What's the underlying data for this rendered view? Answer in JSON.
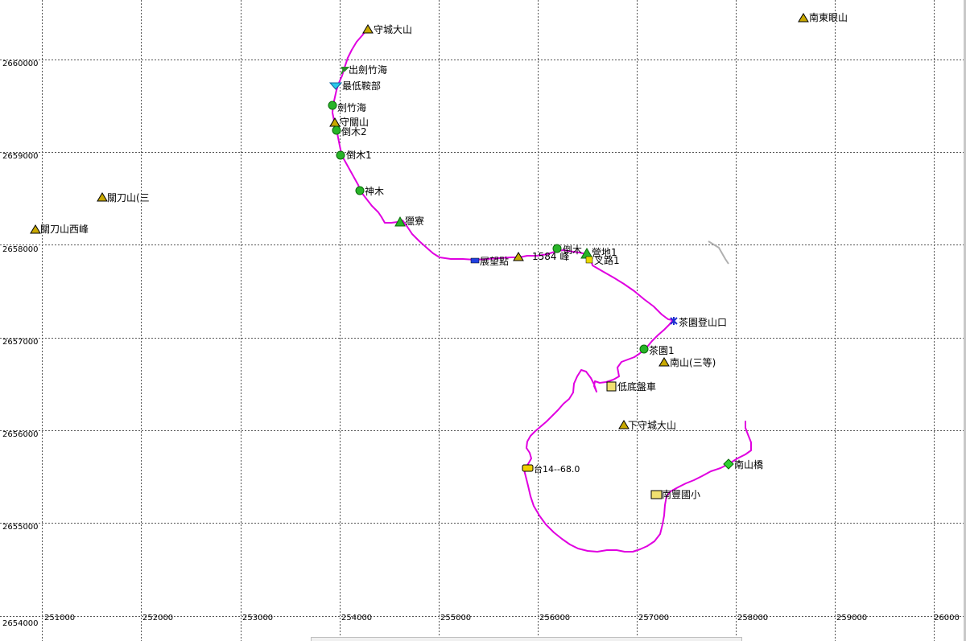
{
  "map": {
    "x_axis_labels": [
      "251000",
      "252000",
      "253000",
      "254000",
      "255000",
      "256000",
      "257000",
      "258000",
      "259000",
      "26000"
    ],
    "y_axis_labels": [
      "2660000",
      "2659000",
      "2658000",
      "2657000",
      "2656000",
      "2655000",
      "2654000"
    ],
    "colors": {
      "track": "#e000e0",
      "grid": "#555555",
      "faint_track": "#b0b0b0"
    },
    "waypoints": [
      {
        "id": "shoucheng-dashan",
        "label": "守城大山",
        "icon": "mountain-icon"
      },
      {
        "id": "nandongyan-shan",
        "label": "南東眼山",
        "icon": "mountain-icon"
      },
      {
        "id": "chujian-zhuhai",
        "label": "出劍竹海",
        "icon": "flag-icon"
      },
      {
        "id": "zuidi-anbu",
        "label": "最低鞍部",
        "icon": "saddle-icon"
      },
      {
        "id": "jian-zhuhai",
        "label": "劍竹海",
        "icon": "tree-icon"
      },
      {
        "id": "shouguan-shan",
        "label": "守關山",
        "icon": "mountain-icon"
      },
      {
        "id": "daomu-2",
        "label": "倒木2",
        "icon": "tree-icon"
      },
      {
        "id": "daomu-1",
        "label": "倒木1",
        "icon": "tree-icon"
      },
      {
        "id": "shenmu",
        "label": "神木",
        "icon": "tree-icon"
      },
      {
        "id": "guandao-shan-san",
        "label": "關刀山(三",
        "icon": "mountain-icon"
      },
      {
        "id": "guandao-shan-xifeng",
        "label": "關刀山西峰",
        "icon": "mountain-icon"
      },
      {
        "id": "lieliao",
        "label": "獵寮",
        "icon": "hut-icon"
      },
      {
        "id": "zhanwangdian",
        "label": "展望點",
        "icon": "binoculars-icon"
      },
      {
        "id": "peak-1584",
        "label": "1584 峰",
        "icon": "mountain-icon"
      },
      {
        "id": "daomu",
        "label": "倒木",
        "icon": "tree-icon"
      },
      {
        "id": "yingdi-1",
        "label": "營地1",
        "icon": "tent-icon"
      },
      {
        "id": "chalu-1",
        "label": "叉路1",
        "icon": "junction-icon"
      },
      {
        "id": "chayuan-trailhead",
        "label": "茶園登山口",
        "icon": "hiker-icon"
      },
      {
        "id": "chayuan-1",
        "label": "茶園1",
        "icon": "tree-icon"
      },
      {
        "id": "nanshan-sandeng",
        "label": "南山(三等)",
        "icon": "mountain-icon"
      },
      {
        "id": "didiche",
        "label": "低底盤車",
        "icon": "parking-icon"
      },
      {
        "id": "xia-shoucheng-dashan",
        "label": "下守城大山",
        "icon": "mountain-icon"
      },
      {
        "id": "nanshan-qiao",
        "label": "南山橋",
        "icon": "bridge-icon"
      },
      {
        "id": "tai14",
        "label": "台14--68.0",
        "icon": "car-icon"
      },
      {
        "id": "nanfeng-school",
        "label": "南豐國小",
        "icon": "school-icon"
      }
    ]
  }
}
